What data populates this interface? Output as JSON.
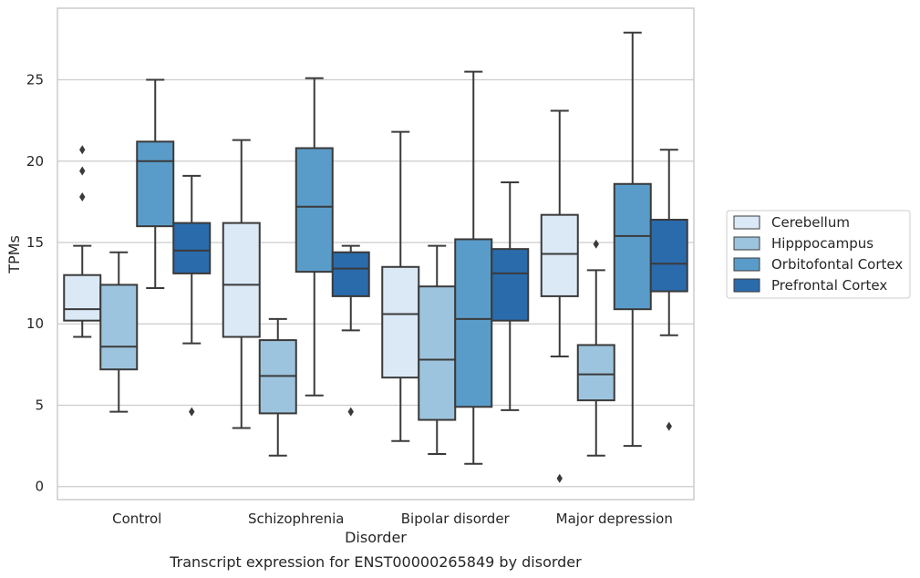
{
  "caption": "Transcript expression for ENST00000265849 by disorder",
  "chart_data": {
    "type": "box",
    "xlabel": "Disorder",
    "ylabel": "TPMs",
    "ylim": [
      -0.8,
      29.4
    ],
    "yticks": [
      0,
      5,
      10,
      15,
      20,
      25
    ],
    "grid": "horizontal",
    "legend_position": "right",
    "categories": [
      "Control",
      "Schizophrenia",
      "Bipolar disorder",
      "Major depression"
    ],
    "series": [
      {
        "name": "Cerebellum",
        "color": "#dbe9f6",
        "boxes": [
          {
            "whisker_low": 9.2,
            "q1": 10.2,
            "median": 10.9,
            "q3": 13.0,
            "whisker_high": 14.8,
            "outliers": [
              17.8,
              19.4,
              20.7
            ]
          },
          {
            "whisker_low": 3.6,
            "q1": 9.2,
            "median": 12.4,
            "q3": 16.2,
            "whisker_high": 21.3,
            "outliers": []
          },
          {
            "whisker_low": 2.8,
            "q1": 6.7,
            "median": 10.6,
            "q3": 13.5,
            "whisker_high": 21.8,
            "outliers": []
          },
          {
            "whisker_low": 8.0,
            "q1": 11.7,
            "median": 14.3,
            "q3": 16.7,
            "whisker_high": 23.1,
            "outliers": [
              0.5
            ]
          }
        ]
      },
      {
        "name": "Hipppocampus",
        "color": "#9dc4de",
        "boxes": [
          {
            "whisker_low": 4.6,
            "q1": 7.2,
            "median": 8.6,
            "q3": 12.4,
            "whisker_high": 14.4,
            "outliers": []
          },
          {
            "whisker_low": 1.9,
            "q1": 4.5,
            "median": 6.8,
            "q3": 9.0,
            "whisker_high": 10.3,
            "outliers": []
          },
          {
            "whisker_low": 2.0,
            "q1": 4.1,
            "median": 7.8,
            "q3": 12.3,
            "whisker_high": 14.8,
            "outliers": []
          },
          {
            "whisker_low": 1.9,
            "q1": 5.3,
            "median": 6.9,
            "q3": 8.7,
            "whisker_high": 13.3,
            "outliers": [
              14.9
            ]
          }
        ]
      },
      {
        "name": "Orbitofontal Cortex",
        "color": "#5a9cc9",
        "boxes": [
          {
            "whisker_low": 12.2,
            "q1": 16.0,
            "median": 20.0,
            "q3": 21.2,
            "whisker_high": 25.0,
            "outliers": []
          },
          {
            "whisker_low": 5.6,
            "q1": 13.2,
            "median": 17.2,
            "q3": 20.8,
            "whisker_high": 25.1,
            "outliers": []
          },
          {
            "whisker_low": 1.4,
            "q1": 4.9,
            "median": 10.3,
            "q3": 15.2,
            "whisker_high": 25.5,
            "outliers": []
          },
          {
            "whisker_low": 2.5,
            "q1": 10.9,
            "median": 15.4,
            "q3": 18.6,
            "whisker_high": 27.9,
            "outliers": []
          }
        ]
      },
      {
        "name": "Prefrontal Cortex",
        "color": "#2a6bac",
        "boxes": [
          {
            "whisker_low": 8.8,
            "q1": 13.1,
            "median": 14.5,
            "q3": 16.2,
            "whisker_high": 19.1,
            "outliers": [
              4.6
            ]
          },
          {
            "whisker_low": 9.6,
            "q1": 11.7,
            "median": 13.4,
            "q3": 14.4,
            "whisker_high": 14.8,
            "outliers": [
              4.6
            ]
          },
          {
            "whisker_low": 4.7,
            "q1": 10.2,
            "median": 13.1,
            "q3": 14.6,
            "whisker_high": 18.7,
            "outliers": []
          },
          {
            "whisker_low": 9.3,
            "q1": 12.0,
            "median": 13.7,
            "q3": 16.4,
            "whisker_high": 20.7,
            "outliers": [
              3.7
            ]
          }
        ]
      }
    ]
  }
}
